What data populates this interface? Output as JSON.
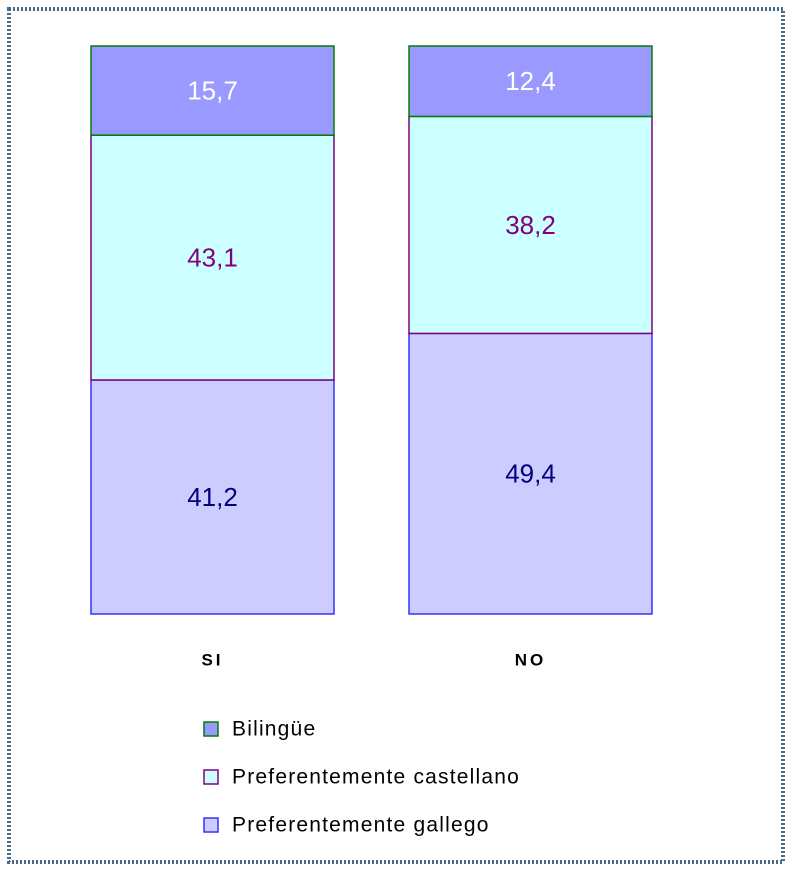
{
  "chart_data": {
    "type": "stacked_bar",
    "categories": [
      "SI",
      "NO"
    ],
    "series": [
      {
        "name": "Preferentemente gallego",
        "color": "#ccccff",
        "edgecolor": "#3333ff",
        "label_color": "#000080",
        "values": [
          41.2,
          49.4
        ],
        "value_labels": [
          "41,2",
          "49,4"
        ]
      },
      {
        "name": "Preferentemente castellano",
        "color": "#ccffff",
        "edgecolor": "#800080",
        "label_color": "#800080",
        "values": [
          43.1,
          38.2
        ],
        "value_labels": [
          "43,1",
          "38,2"
        ]
      },
      {
        "name": "Bilingüe",
        "color": "#9999ff",
        "edgecolor": "#008000",
        "label_color": "#ffffff",
        "values": [
          15.7,
          12.4
        ],
        "value_labels": [
          "15,7",
          "12,4"
        ]
      }
    ],
    "legend": "bottom"
  }
}
